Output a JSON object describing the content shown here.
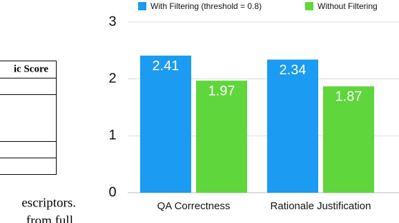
{
  "paper_fragment": {
    "table_header": "ic Score",
    "text_lines": [
      "escriptors.",
      "from full"
    ]
  },
  "chart_data": {
    "type": "bar",
    "categories": [
      "QA Correctness",
      "Rationale Justification"
    ],
    "series": [
      {
        "name": "With Filtering (threshold = 0.8)",
        "color": "#1b9bf2",
        "values": [
          2.41,
          2.34
        ]
      },
      {
        "name": "Without Filtering",
        "color": "#5fd63c",
        "values": [
          1.97,
          1.87
        ]
      }
    ],
    "ylim": [
      0,
      3
    ],
    "yticks": [
      0,
      1,
      2,
      3
    ],
    "grid": true,
    "legend": "top"
  }
}
